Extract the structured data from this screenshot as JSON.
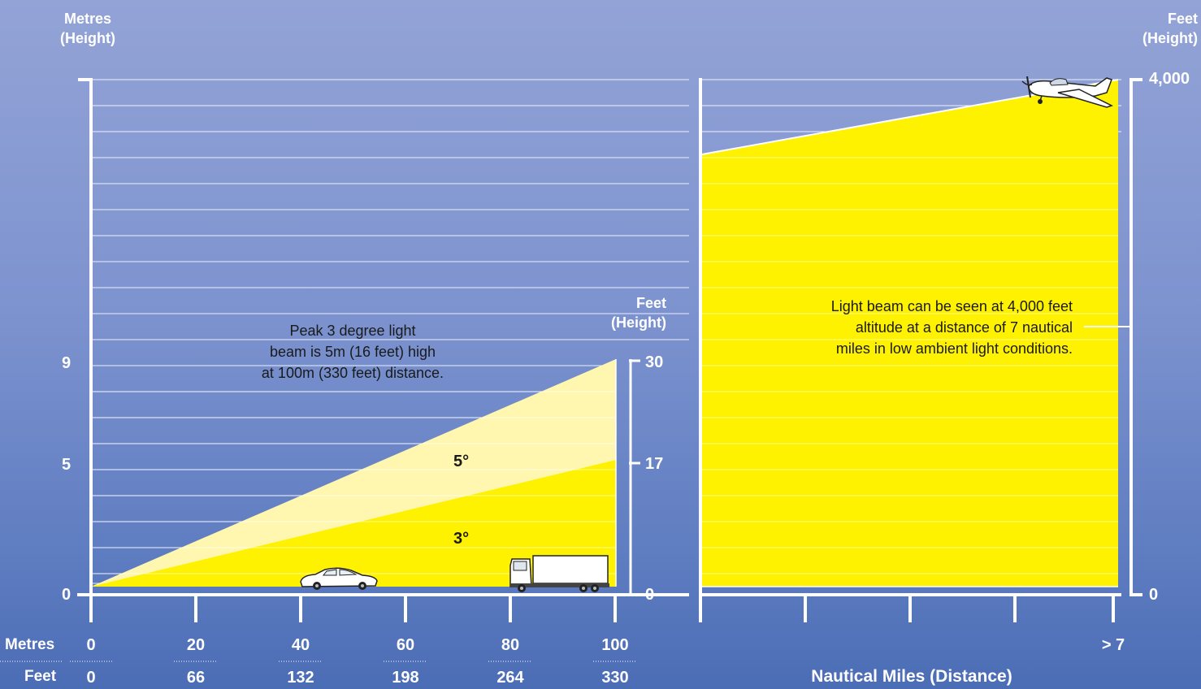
{
  "left_panel": {
    "y_axis_title_line1": "Metres",
    "y_axis_title_line2": "(Height)",
    "y_ticks": [
      "9",
      "5",
      "0"
    ],
    "right_axis_title_line1": "Feet",
    "right_axis_title_line2": "(Height)",
    "right_ticks": [
      "30",
      "17",
      "0"
    ],
    "x_metres_label": "Metres",
    "x_feet_label": "Feet",
    "x_metres_ticks": [
      "0",
      "20",
      "40",
      "60",
      "80",
      "100"
    ],
    "x_feet_ticks": [
      "0",
      "66",
      "132",
      "198",
      "264",
      "330"
    ],
    "beam_5_label": "5°",
    "beam_3_label": "3°",
    "note_line1": "Peak 3 degree light",
    "note_line2": "beam is 5m (16 feet) high",
    "note_line3": "at 100m (330 feet) distance.",
    "colors": {
      "beam_3": "#fff200",
      "beam_5": "#fff7b0",
      "grid": "#ffffff"
    }
  },
  "right_panel": {
    "axis_title_line1": "Feet",
    "axis_title_line2": "(Height)",
    "ticks": [
      "4,000",
      "0"
    ],
    "x_tick": "> 7",
    "x_axis_title": "Nautical Miles (Distance)",
    "note_line1": "Light beam can be seen at 4,000 feet",
    "note_line2": "altitude at a distance of 7 nautical",
    "note_line3": "miles in low ambient light conditions.",
    "colors": {
      "beam": "#fff200"
    }
  },
  "icons": [
    "car-icon",
    "truck-icon",
    "airplane-icon"
  ]
}
